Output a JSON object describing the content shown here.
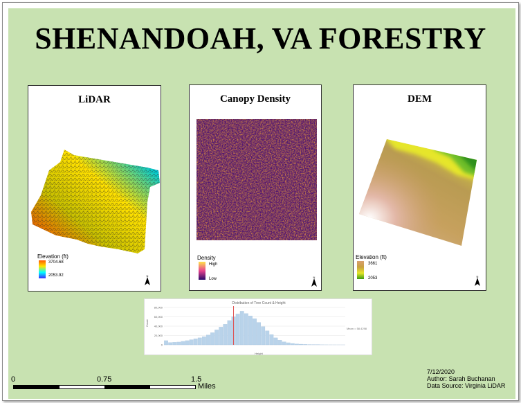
{
  "title": "SHENANDOAH, VA FORESTRY",
  "panels": {
    "lidar": {
      "title": "LiDAR",
      "legend_title": "Elevation (ft)",
      "legend_high": "3704.68",
      "legend_low": "2053.92"
    },
    "canopy": {
      "title": "Canopy Density",
      "legend_title": "Density",
      "legend_high": "High",
      "legend_low": "Low"
    },
    "dem": {
      "title": "DEM",
      "legend_title": "Elevation (ft)",
      "legend_high": "3661",
      "legend_low": "2053"
    }
  },
  "north_label": "N",
  "chart_data": {
    "type": "bar",
    "title": "Distribution of Tree Count & Height",
    "xlabel": "Height",
    "ylabel": "Count",
    "yticks": [
      "80,000",
      "60,000",
      "40,000",
      "20,000",
      "0"
    ],
    "ylim": [
      0,
      80000
    ],
    "values": [
      9000,
      5000,
      5500,
      6000,
      7500,
      9000,
      11000,
      13000,
      15000,
      17500,
      21000,
      26000,
      32000,
      38000,
      44000,
      52000,
      60000,
      66000,
      72000,
      67000,
      62000,
      56000,
      48000,
      39000,
      30000,
      22000,
      15000,
      10000,
      6500,
      4500,
      3000,
      2000,
      1400,
      900,
      600,
      400,
      250,
      150,
      90,
      50,
      30,
      20,
      10
    ],
    "mean_value": 58,
    "mean_label": "Mean = 58.4298",
    "grid": true
  },
  "scalebar": {
    "ticks": [
      "0",
      "0.75",
      "1.5"
    ],
    "unit": "Miles"
  },
  "info": {
    "date": "7/12/2020",
    "author": "Author: Sarah Buchanan",
    "source": "Data Source: Virginia LiDAR"
  },
  "colors": {
    "background": "#c8e2b1",
    "lidar_ramp": [
      "#ff3a00",
      "#ffe600",
      "#00ffff",
      "#3b2cff"
    ],
    "canopy_ramp": [
      "#ffe24a",
      "#e8428e",
      "#2a0a6b"
    ],
    "dem_ramp": [
      "#d8a070",
      "#4caf10"
    ]
  }
}
